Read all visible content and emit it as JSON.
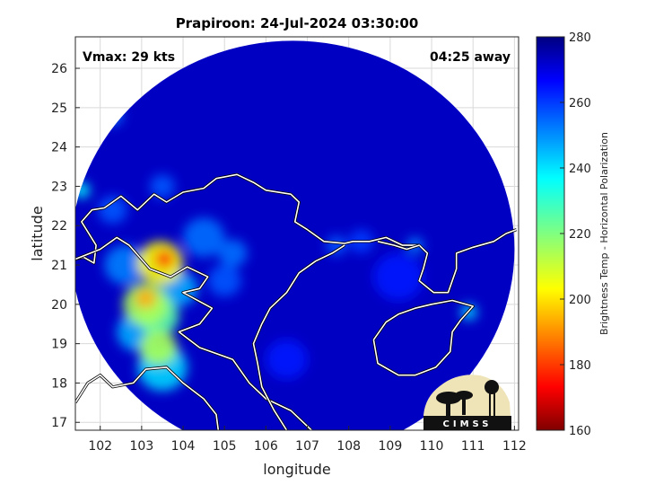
{
  "chart_data": {
    "type": "heatmap",
    "title": "Prapiroon: 24-Jul-2024 03:30:00",
    "xlabel": "longitude",
    "ylabel": "latitude",
    "xlim": [
      101.4,
      112.1
    ],
    "ylim": [
      16.8,
      26.8
    ],
    "xticks": [
      102,
      103,
      104,
      105,
      106,
      107,
      108,
      109,
      110,
      111,
      112
    ],
    "yticks": [
      17,
      18,
      19,
      20,
      21,
      22,
      23,
      24,
      25,
      26
    ],
    "grid": true,
    "annotations": {
      "vmax": "Vmax: 29 kts",
      "time_away": "04:25 away"
    },
    "colorbar": {
      "label": "Brightness Temp - Horizontal Polarization",
      "range": [
        160,
        280
      ],
      "ticks": [
        160,
        180,
        200,
        220,
        240,
        260,
        280
      ],
      "colormap": "jet"
    },
    "swath": {
      "center_lon": 106.65,
      "center_lat": 21.4,
      "radius_lon": 5.35,
      "radius_lat": 5.3
    },
    "background_value": 272,
    "features": [
      {
        "lon": 103.55,
        "lat": 21.15,
        "value": 178,
        "spread": 0.22
      },
      {
        "lon": 103.45,
        "lat": 21.05,
        "value": 205,
        "spread": 0.55
      },
      {
        "lon": 103.1,
        "lat": 20.15,
        "value": 195,
        "spread": 0.25
      },
      {
        "lon": 103.1,
        "lat": 20.0,
        "value": 215,
        "spread": 0.55
      },
      {
        "lon": 103.4,
        "lat": 19.7,
        "value": 225,
        "spread": 0.5
      },
      {
        "lon": 103.4,
        "lat": 18.9,
        "value": 215,
        "spread": 0.45
      },
      {
        "lon": 103.5,
        "lat": 18.4,
        "value": 240,
        "spread": 0.6
      },
      {
        "lon": 102.9,
        "lat": 19.3,
        "value": 245,
        "spread": 0.5
      },
      {
        "lon": 103.9,
        "lat": 20.4,
        "value": 245,
        "spread": 0.45
      },
      {
        "lon": 102.6,
        "lat": 21.0,
        "value": 250,
        "spread": 0.5
      },
      {
        "lon": 104.5,
        "lat": 21.7,
        "value": 252,
        "spread": 0.5
      },
      {
        "lon": 105.2,
        "lat": 21.3,
        "value": 252,
        "spread": 0.35
      },
      {
        "lon": 105.0,
        "lat": 20.6,
        "value": 255,
        "spread": 0.4
      },
      {
        "lon": 102.3,
        "lat": 24.8,
        "value": 252,
        "spread": 0.25
      },
      {
        "lon": 103.5,
        "lat": 23.0,
        "value": 255,
        "spread": 0.3
      },
      {
        "lon": 101.55,
        "lat": 22.9,
        "value": 235,
        "spread": 0.2
      },
      {
        "lon": 110.9,
        "lat": 19.8,
        "value": 240,
        "spread": 0.2
      },
      {
        "lon": 109.6,
        "lat": 21.5,
        "value": 250,
        "spread": 0.2
      },
      {
        "lon": 107.7,
        "lat": 21.5,
        "value": 255,
        "spread": 0.25
      },
      {
        "lon": 108.3,
        "lat": 21.6,
        "value": 258,
        "spread": 0.3
      },
      {
        "lon": 109.2,
        "lat": 20.7,
        "value": 262,
        "spread": 0.6
      },
      {
        "lon": 106.5,
        "lat": 18.6,
        "value": 262,
        "spread": 0.5
      },
      {
        "lon": 102.3,
        "lat": 22.4,
        "value": 255,
        "spread": 0.35
      }
    ],
    "coastlines": [
      [
        [
          101.4,
          21.15
        ],
        [
          101.6,
          21.2
        ],
        [
          101.85,
          21.05
        ],
        [
          101.9,
          21.5
        ],
        [
          101.55,
          22.1
        ],
        [
          101.8,
          22.4
        ],
        [
          102.1,
          22.45
        ],
        [
          102.5,
          22.75
        ],
        [
          102.9,
          22.4
        ],
        [
          103.3,
          22.8
        ],
        [
          103.6,
          22.6
        ],
        [
          104.0,
          22.85
        ],
        [
          104.5,
          22.95
        ],
        [
          104.8,
          23.2
        ],
        [
          105.3,
          23.3
        ],
        [
          105.7,
          23.1
        ],
        [
          106.0,
          22.9
        ],
        [
          106.6,
          22.8
        ],
        [
          106.8,
          22.6
        ],
        [
          106.7,
          22.1
        ],
        [
          107.0,
          21.9
        ],
        [
          107.4,
          21.6
        ],
        [
          107.9,
          21.55
        ],
        [
          108.1,
          21.6
        ],
        [
          108.5,
          21.6
        ],
        [
          108.9,
          21.7
        ],
        [
          109.3,
          21.5
        ],
        [
          109.7,
          21.5
        ],
        [
          109.9,
          21.3
        ],
        [
          109.8,
          20.9
        ],
        [
          109.7,
          20.6
        ],
        [
          110.05,
          20.3
        ],
        [
          110.4,
          20.3
        ],
        [
          110.6,
          20.9
        ],
        [
          110.6,
          21.3
        ],
        [
          111.0,
          21.45
        ],
        [
          111.5,
          21.6
        ],
        [
          111.8,
          21.8
        ],
        [
          112.05,
          21.9
        ]
      ],
      [
        [
          101.4,
          17.5
        ],
        [
          101.7,
          18.0
        ],
        [
          102.0,
          18.2
        ],
        [
          102.3,
          17.9
        ],
        [
          102.8,
          18.0
        ],
        [
          103.1,
          18.35
        ],
        [
          103.6,
          18.4
        ],
        [
          104.0,
          18.0
        ],
        [
          104.5,
          17.6
        ],
        [
          104.8,
          17.2
        ],
        [
          104.85,
          16.8
        ]
      ],
      [
        [
          101.4,
          21.15
        ],
        [
          102.0,
          21.4
        ],
        [
          102.4,
          21.7
        ],
        [
          102.7,
          21.5
        ],
        [
          103.2,
          20.9
        ],
        [
          103.7,
          20.7
        ],
        [
          104.1,
          20.95
        ],
        [
          104.6,
          20.7
        ],
        [
          104.4,
          20.4
        ],
        [
          104.0,
          20.3
        ],
        [
          104.7,
          19.9
        ],
        [
          104.4,
          19.5
        ],
        [
          103.9,
          19.3
        ],
        [
          104.4,
          18.9
        ],
        [
          105.2,
          18.6
        ],
        [
          105.6,
          18.0
        ],
        [
          106.0,
          17.6
        ],
        [
          106.6,
          17.3
        ],
        [
          106.9,
          17.0
        ],
        [
          107.1,
          16.8
        ]
      ],
      [
        [
          106.5,
          16.8
        ],
        [
          106.2,
          17.3
        ],
        [
          105.9,
          17.9
        ],
        [
          105.8,
          18.5
        ],
        [
          105.7,
          19.0
        ],
        [
          105.9,
          19.5
        ],
        [
          106.1,
          19.9
        ],
        [
          106.5,
          20.3
        ],
        [
          106.8,
          20.8
        ],
        [
          107.2,
          21.1
        ],
        [
          107.6,
          21.3
        ],
        [
          107.9,
          21.5
        ]
      ],
      [
        [
          108.7,
          21.6
        ],
        [
          109.1,
          21.5
        ],
        [
          109.4,
          21.4
        ],
        [
          109.7,
          21.5
        ]
      ],
      [
        [
          108.6,
          19.1
        ],
        [
          108.7,
          18.5
        ],
        [
          109.2,
          18.2
        ],
        [
          109.6,
          18.2
        ],
        [
          110.1,
          18.4
        ],
        [
          110.45,
          18.8
        ],
        [
          110.5,
          19.3
        ],
        [
          110.7,
          19.6
        ],
        [
          111.0,
          19.95
        ],
        [
          110.5,
          20.1
        ],
        [
          110.0,
          20.0
        ],
        [
          109.6,
          19.9
        ],
        [
          109.2,
          19.75
        ],
        [
          108.9,
          19.55
        ],
        [
          108.6,
          19.1
        ]
      ]
    ]
  },
  "logo": {
    "text": "CIMSS"
  },
  "colors": {
    "swath_background": "#0a1fc8",
    "coastline": "#ffffff",
    "grid": "#d9d9d9"
  }
}
